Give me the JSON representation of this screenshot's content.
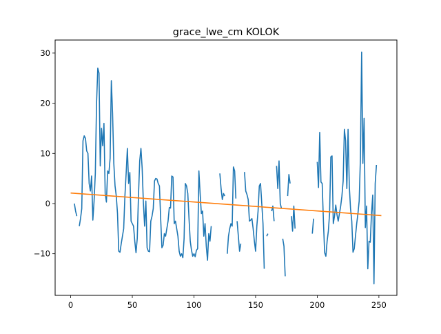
{
  "chart_data": {
    "type": "line",
    "title": "grace_lwe_cm KOLOK",
    "xlabel": "",
    "ylabel": "",
    "xlim": [
      -12.6,
      264.6
    ],
    "ylim": [
      -18.3,
      32.6
    ],
    "xticks": [
      0,
      50,
      100,
      150,
      200,
      250
    ],
    "yticks": [
      -10,
      0,
      10,
      20,
      30
    ],
    "xtick_labels": [
      "0",
      "50",
      "100",
      "150",
      "200",
      "250"
    ],
    "ytick_labels": [
      "−10",
      "0",
      "10",
      "20",
      "30"
    ],
    "grid": false,
    "legend": "none",
    "series": [
      {
        "name": "grace_lwe_cm",
        "color": "#1f77b4",
        "segments": [
          [
            [
              3,
              0
            ],
            [
              4,
              -1.5
            ],
            [
              5,
              -2.5
            ]
          ],
          [
            [
              7,
              -4.5
            ],
            [
              8,
              -3
            ],
            [
              9,
              -1
            ],
            [
              10,
              12.5
            ],
            [
              11,
              13.5
            ],
            [
              12,
              13
            ],
            [
              13,
              10.5
            ],
            [
              14,
              10
            ],
            [
              15,
              4
            ],
            [
              16,
              2.5
            ],
            [
              17,
              5.5
            ],
            [
              18,
              -3.3
            ],
            [
              19,
              0.5
            ],
            [
              20,
              6
            ],
            [
              21,
              20
            ],
            [
              22,
              27
            ],
            [
              23,
              26
            ],
            [
              24,
              7.5
            ],
            [
              25,
              15
            ],
            [
              26,
              11.5
            ],
            [
              27,
              16
            ],
            [
              28,
              2
            ],
            [
              29,
              0.3
            ],
            [
              30,
              6.5
            ],
            [
              31,
              6
            ],
            [
              32,
              9
            ],
            [
              33,
              24.5
            ],
            [
              34,
              18
            ],
            [
              35,
              8
            ],
            [
              36,
              3.5
            ],
            [
              37,
              1.5
            ],
            [
              38,
              -2
            ],
            [
              39,
              -9.5
            ],
            [
              40,
              -9.7
            ],
            [
              41,
              -8
            ],
            [
              42,
              -6.5
            ],
            [
              43,
              -5
            ],
            [
              44,
              1.5
            ],
            [
              45,
              6
            ],
            [
              46,
              11
            ],
            [
              47,
              4
            ],
            [
              48,
              6.2
            ],
            [
              49,
              -3.5
            ],
            [
              50,
              -4
            ],
            [
              51,
              -4.5
            ],
            [
              52,
              -7.5
            ],
            [
              53,
              -9.8
            ],
            [
              54,
              -7
            ],
            [
              55,
              1.5
            ],
            [
              56,
              8.5
            ],
            [
              57,
              11
            ],
            [
              58,
              7
            ],
            [
              59,
              0
            ],
            [
              60,
              -4.5
            ],
            [
              61,
              0.5
            ],
            [
              62,
              -8.8
            ],
            [
              63,
              -9.5
            ],
            [
              64,
              -9.6
            ],
            [
              65,
              -3.5
            ],
            [
              66,
              -2.5
            ],
            [
              67,
              -1
            ],
            [
              68,
              4.5
            ],
            [
              69,
              5
            ],
            [
              70,
              4.9
            ],
            [
              71,
              4
            ],
            [
              72,
              3.5
            ],
            [
              73,
              -3
            ],
            [
              74,
              -8.8
            ],
            [
              75,
              -8.3
            ],
            [
              76,
              -6
            ],
            [
              77,
              -6.5
            ],
            [
              78,
              -5
            ],
            [
              79,
              -3.5
            ],
            [
              80,
              -0.8
            ],
            [
              81,
              -0.9
            ],
            [
              82,
              5.5
            ],
            [
              83,
              5.3
            ],
            [
              84,
              -4
            ],
            [
              85,
              -3.5
            ],
            [
              86,
              -5
            ],
            [
              87,
              -6.5
            ],
            [
              88,
              -9.5
            ],
            [
              89,
              -10.5
            ],
            [
              90,
              -10
            ],
            [
              91,
              -10.8
            ],
            [
              92,
              -7
            ],
            [
              93,
              4
            ],
            [
              94,
              3.5
            ],
            [
              95,
              2
            ],
            [
              96,
              -3
            ],
            [
              97,
              -7.5
            ],
            [
              98,
              -9.3
            ],
            [
              99,
              -10.5
            ],
            [
              100,
              -10
            ],
            [
              101,
              -10.6
            ],
            [
              102,
              -9.3
            ],
            [
              103,
              -9
            ],
            [
              104,
              6.5
            ],
            [
              105,
              2
            ],
            [
              106,
              -2
            ],
            [
              107,
              -1.5
            ],
            [
              108,
              -6.5
            ],
            [
              109,
              -4
            ],
            [
              110,
              -8.5
            ],
            [
              111,
              -11.3
            ],
            [
              112,
              -6
            ],
            [
              113,
              -7.5
            ],
            [
              114,
              -4.5
            ]
          ],
          [
            [
              121,
              6
            ],
            [
              122,
              3
            ],
            [
              123,
              0.8
            ],
            [
              124,
              2
            ],
            [
              125,
              1.5
            ]
          ],
          [
            [
              127,
              -10
            ],
            [
              128,
              -6.5
            ],
            [
              129,
              -5
            ],
            [
              130,
              -4
            ],
            [
              131,
              -4.5
            ],
            [
              132,
              7.3
            ],
            [
              133,
              6.5
            ],
            [
              134,
              1
            ]
          ],
          [
            [
              135,
              -3.5
            ],
            [
              136,
              -6.5
            ],
            [
              137,
              -9.5
            ],
            [
              138,
              -8
            ]
          ],
          [
            [
              141,
              6.3
            ],
            [
              142,
              2.5
            ],
            [
              143,
              1.8
            ],
            [
              144,
              0.8
            ],
            [
              145,
              -3.5
            ],
            [
              146,
              -3.3
            ],
            [
              147,
              -3
            ],
            [
              148,
              -5
            ],
            [
              149,
              -7.5
            ],
            [
              150,
              -9.5
            ],
            [
              151,
              -4.5
            ],
            [
              152,
              -1.5
            ],
            [
              153,
              3.5
            ],
            [
              154,
              4
            ],
            [
              155,
              0
            ],
            [
              156,
              -4
            ],
            [
              157,
              -13
            ]
          ],
          [
            [
              159,
              -6.5
            ],
            [
              160,
              -6
            ]
          ],
          [
            [
              163,
              -1.5
            ],
            [
              164,
              -0.5
            ],
            [
              165,
              -3.5
            ]
          ],
          [
            [
              167,
              7.5
            ],
            [
              168,
              3
            ],
            [
              169,
              8.5
            ],
            [
              170,
              0
            ],
            [
              171,
              -1
            ]
          ],
          [
            [
              172,
              -7
            ],
            [
              173,
              -8.5
            ],
            [
              174,
              -14.5
            ]
          ],
          [
            [
              176,
              1.5
            ],
            [
              177,
              5.8
            ],
            [
              178,
              4
            ]
          ],
          [
            [
              179,
              -2.5
            ],
            [
              180,
              -5.5
            ],
            [
              181,
              -0.5
            ],
            [
              182,
              -5
            ]
          ],
          [
            [
              196,
              -6
            ],
            [
              197,
              -3
            ]
          ],
          [
            [
              200,
              8.3
            ],
            [
              201,
              3.2
            ],
            [
              202,
              14.2
            ],
            [
              203,
              4.3
            ],
            [
              204,
              4
            ],
            [
              205,
              -3.5
            ],
            [
              206,
              -9.8
            ],
            [
              207,
              -10.5
            ],
            [
              208,
              -7.5
            ],
            [
              209,
              -5.5
            ],
            [
              210,
              -2
            ],
            [
              211,
              9.3
            ],
            [
              212,
              9.5
            ],
            [
              213,
              -4
            ],
            [
              214,
              -2.5
            ],
            [
              215,
              -0.3
            ],
            [
              216,
              -2.2
            ],
            [
              217,
              -3.5
            ],
            [
              218,
              -2
            ],
            [
              219,
              -0.5
            ],
            [
              220,
              1.5
            ],
            [
              221,
              4.5
            ],
            [
              222,
              14.8
            ],
            [
              223,
              12.5
            ],
            [
              224,
              3
            ],
            [
              225,
              14.8
            ],
            [
              226,
              3.5
            ],
            [
              227,
              -1
            ],
            [
              228,
              -3.5
            ],
            [
              229,
              -9.7
            ],
            [
              230,
              -9
            ],
            [
              231,
              -6.5
            ],
            [
              232,
              -4
            ],
            [
              233,
              -2
            ],
            [
              234,
              0.5
            ],
            [
              235,
              9
            ],
            [
              236,
              30.2
            ],
            [
              237,
              8
            ],
            [
              238,
              17
            ],
            [
              239,
              -4.8
            ],
            [
              240,
              -0.5
            ],
            [
              241,
              -13
            ],
            [
              242,
              -7.5
            ],
            [
              243,
              -7.7
            ],
            [
              244,
              -2
            ],
            [
              245,
              1.7
            ],
            [
              246,
              -16
            ],
            [
              247,
              4
            ],
            [
              248,
              7.7
            ]
          ]
        ]
      },
      {
        "name": "trend",
        "color": "#ff7f0e",
        "points": [
          [
            0,
            2.1
          ],
          [
            252,
            -2.4
          ]
        ]
      }
    ]
  }
}
